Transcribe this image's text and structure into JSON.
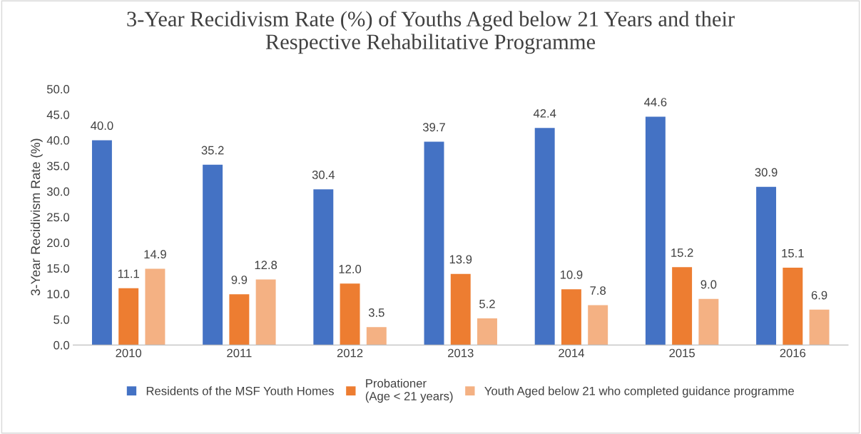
{
  "chart_data": {
    "type": "bar",
    "title": "3-Year Recidivism Rate (%) of Youths Aged below 21 Years and their\nRespective Rehabilitative Programme",
    "ylabel": "3-Year Recidivism Rate (%)",
    "categories": [
      "2010",
      "2011",
      "2012",
      "2013",
      "2014",
      "2015",
      "2016"
    ],
    "series": [
      {
        "name": "Residents of the MSF Youth Homes",
        "color": "#4472c4",
        "values": [
          40.0,
          35.2,
          30.4,
          39.7,
          42.4,
          44.6,
          30.9
        ],
        "value_labels": [
          "40.0",
          "35.2",
          "30.4",
          "39.7",
          "42.4",
          "44.6",
          "30.9"
        ]
      },
      {
        "name": "Probationer\n(Age < 21 years)",
        "color": "#ed7d31",
        "values": [
          11.1,
          9.9,
          12.0,
          13.9,
          10.9,
          15.2,
          15.1
        ],
        "value_labels": [
          "11.1",
          "9.9",
          "12.0",
          "13.9",
          "10.9",
          "15.2",
          "15.1"
        ]
      },
      {
        "name": "Youth Aged below 21 who completed guidance programme",
        "color": "#f4b183",
        "values": [
          14.9,
          12.8,
          3.5,
          5.2,
          7.8,
          9.0,
          6.9
        ],
        "value_labels": [
          "14.9",
          "12.8",
          "3.5",
          "5.2",
          "7.8",
          "9.0",
          "6.9"
        ]
      }
    ],
    "ylim": [
      0,
      50
    ],
    "yticks": [
      {
        "value": 0,
        "label": "0.0"
      },
      {
        "value": 5,
        "label": "5.0"
      },
      {
        "value": 10,
        "label": "10.0"
      },
      {
        "value": 15,
        "label": "15.0"
      },
      {
        "value": 20,
        "label": "20.0"
      },
      {
        "value": 25,
        "label": "25.0"
      },
      {
        "value": 30,
        "label": "30.0"
      },
      {
        "value": 35,
        "label": "35.0"
      },
      {
        "value": 40,
        "label": "40.0"
      },
      {
        "value": 45,
        "label": "45.0"
      },
      {
        "value": 50,
        "label": "50.0"
      }
    ],
    "legend": "bottom"
  }
}
